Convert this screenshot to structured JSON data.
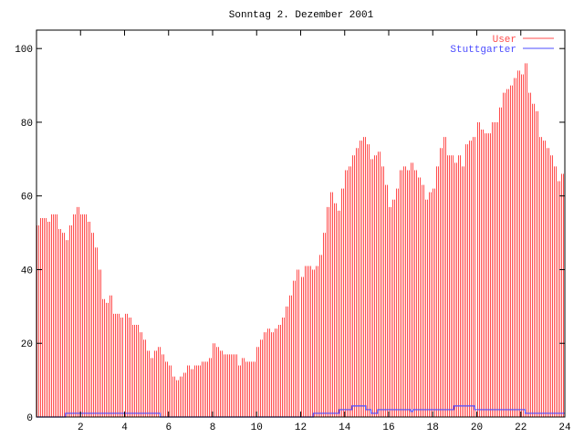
{
  "chart_data": {
    "type": "bar",
    "title": "Sonntag 2. Dezember 2001",
    "xlabel": "",
    "ylabel": "",
    "xlim": [
      0,
      24
    ],
    "ylim": [
      0,
      105
    ],
    "x_ticks": [
      2,
      4,
      6,
      8,
      10,
      12,
      14,
      16,
      18,
      20,
      22,
      24
    ],
    "y_ticks": [
      0,
      20,
      40,
      60,
      80,
      100
    ],
    "grid": false,
    "legend_position": "top-right",
    "sample_interval_hours": 0.16667,
    "series": [
      {
        "name": "User",
        "style": "impulses",
        "color": "#ff4d4d",
        "values": [
          52,
          54,
          54,
          53,
          55,
          55,
          51,
          50,
          48,
          52,
          55,
          57,
          55,
          55,
          53,
          50,
          46,
          40,
          32,
          31,
          33,
          28,
          28,
          27,
          28,
          27,
          25,
          25,
          23,
          21,
          18,
          16,
          18,
          19,
          17,
          15,
          14,
          11,
          10,
          11,
          12,
          14,
          13,
          14,
          14,
          15,
          15,
          16,
          20,
          19,
          18,
          17,
          17,
          17,
          17,
          14,
          16,
          15,
          15,
          15,
          19,
          21,
          23,
          24,
          23,
          24,
          25,
          27,
          30,
          33,
          37,
          40,
          38,
          41,
          41,
          40,
          41,
          44,
          50,
          57,
          61,
          58,
          56,
          62,
          67,
          68,
          71,
          73,
          75,
          76,
          74,
          70,
          71,
          72,
          68,
          63,
          57,
          59,
          62,
          67,
          68,
          67,
          69,
          67,
          65,
          63,
          59,
          61,
          62,
          68,
          73,
          76,
          71,
          71,
          69,
          71,
          68,
          74,
          75,
          76,
          80,
          78,
          77,
          77,
          80,
          80,
          84,
          88,
          89,
          90,
          92,
          94,
          93,
          96,
          88,
          85,
          83,
          76,
          75,
          73,
          71,
          68,
          64,
          66
        ]
      },
      {
        "name": "Stuttgarter",
        "style": "steps",
        "color": "#4d4dff",
        "points": [
          [
            0,
            0
          ],
          [
            1.32,
            1
          ],
          [
            5.62,
            0
          ],
          [
            12.57,
            1
          ],
          [
            13.75,
            2
          ],
          [
            14.33,
            3
          ],
          [
            14.96,
            2
          ],
          [
            15.2,
            1
          ],
          [
            15.5,
            2
          ],
          [
            17.0,
            1.5
          ],
          [
            17.1,
            2
          ],
          [
            18.96,
            3
          ],
          [
            19.9,
            2
          ],
          [
            22.2,
            1
          ],
          [
            24,
            1
          ]
        ]
      }
    ]
  }
}
